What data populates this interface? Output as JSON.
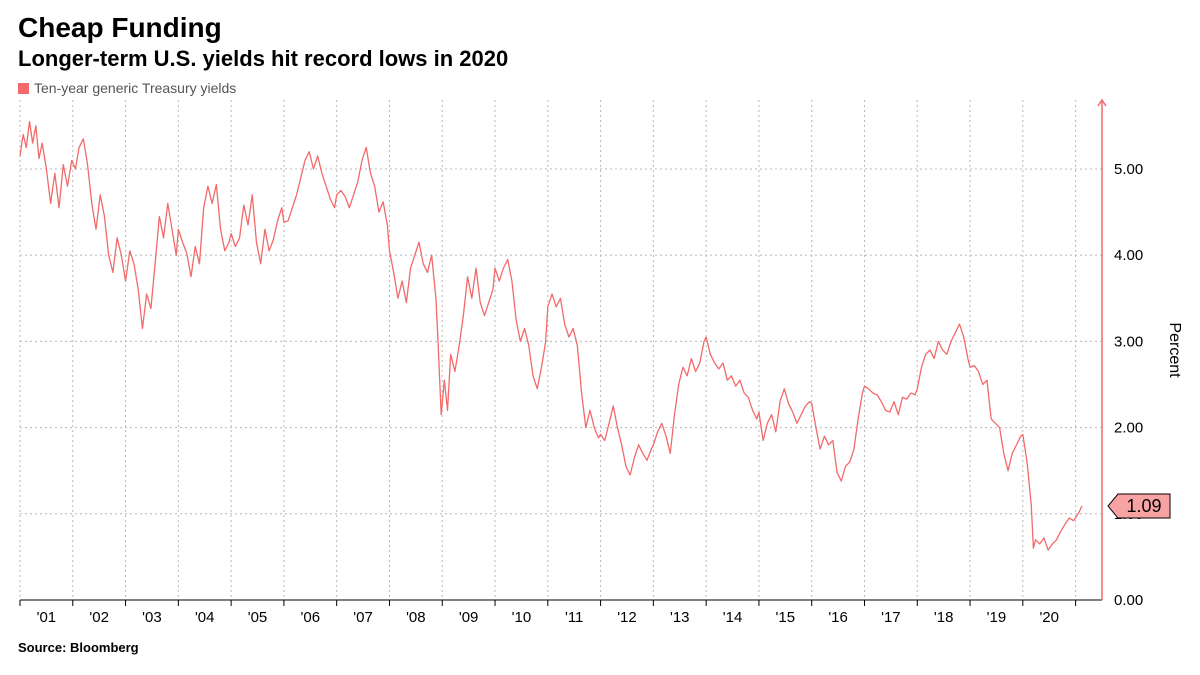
{
  "title": "Cheap Funding",
  "subtitle": "Longer-term U.S. yields hit record lows in 2020",
  "legend": {
    "label": "Ten-year generic Treasury yields",
    "color": "#f26a6a"
  },
  "source": "Source: Bloomberg",
  "chart": {
    "type": "line",
    "line_color": "#f26a6a",
    "line_width": 1.3,
    "background_color": "#ffffff",
    "grid_color": "#b8b8b8",
    "axis_color": "#000000",
    "axis_fontsize": 15,
    "y_axis": {
      "title": "Percent",
      "side": "right",
      "min": 0.0,
      "max": 5.8,
      "ticks": [
        0.0,
        1.0,
        2.0,
        3.0,
        4.0,
        5.0
      ],
      "tick_format": "0.00"
    },
    "x_axis": {
      "ticks": [
        "'01",
        "'02",
        "'03",
        "'04",
        "'05",
        "'06",
        "'07",
        "'08",
        "'09",
        "'10",
        "'11",
        "'12",
        "'13",
        "'14",
        "'15",
        "'16",
        "'17",
        "'18",
        "'19",
        "'20"
      ],
      "tick_positions": [
        0.5,
        1.5,
        2.5,
        3.5,
        4.5,
        5.5,
        6.5,
        7.5,
        8.5,
        9.5,
        10.5,
        11.5,
        12.5,
        13.5,
        14.5,
        15.5,
        16.5,
        17.5,
        18.5,
        19.5
      ],
      "min": 0,
      "max": 20.5
    },
    "callout": {
      "value": 1.09,
      "label": "1.09",
      "fill": "#f7a3a3",
      "stroke": "#000000"
    },
    "series": [
      [
        0.0,
        5.15
      ],
      [
        0.06,
        5.4
      ],
      [
        0.12,
        5.25
      ],
      [
        0.18,
        5.55
      ],
      [
        0.24,
        5.3
      ],
      [
        0.3,
        5.5
      ],
      [
        0.36,
        5.12
      ],
      [
        0.42,
        5.3
      ],
      [
        0.5,
        5.0
      ],
      [
        0.58,
        4.6
      ],
      [
        0.66,
        4.95
      ],
      [
        0.74,
        4.55
      ],
      [
        0.82,
        5.05
      ],
      [
        0.9,
        4.8
      ],
      [
        0.98,
        5.1
      ],
      [
        1.05,
        5.0
      ],
      [
        1.12,
        5.25
      ],
      [
        1.2,
        5.35
      ],
      [
        1.28,
        5.05
      ],
      [
        1.36,
        4.6
      ],
      [
        1.44,
        4.3
      ],
      [
        1.52,
        4.7
      ],
      [
        1.6,
        4.45
      ],
      [
        1.68,
        4.0
      ],
      [
        1.76,
        3.8
      ],
      [
        1.84,
        4.2
      ],
      [
        1.92,
        4.0
      ],
      [
        2.0,
        3.7
      ],
      [
        2.08,
        4.05
      ],
      [
        2.16,
        3.9
      ],
      [
        2.24,
        3.6
      ],
      [
        2.32,
        3.15
      ],
      [
        2.4,
        3.55
      ],
      [
        2.48,
        3.38
      ],
      [
        2.56,
        3.9
      ],
      [
        2.64,
        4.45
      ],
      [
        2.72,
        4.2
      ],
      [
        2.8,
        4.6
      ],
      [
        2.88,
        4.3
      ],
      [
        2.96,
        4.0
      ],
      [
        3.0,
        4.3
      ],
      [
        3.08,
        4.15
      ],
      [
        3.16,
        4.02
      ],
      [
        3.24,
        3.75
      ],
      [
        3.32,
        4.1
      ],
      [
        3.4,
        3.9
      ],
      [
        3.48,
        4.55
      ],
      [
        3.56,
        4.8
      ],
      [
        3.64,
        4.6
      ],
      [
        3.72,
        4.82
      ],
      [
        3.8,
        4.3
      ],
      [
        3.88,
        4.05
      ],
      [
        3.96,
        4.15
      ],
      [
        4.0,
        4.25
      ],
      [
        4.08,
        4.1
      ],
      [
        4.16,
        4.2
      ],
      [
        4.24,
        4.58
      ],
      [
        4.32,
        4.35
      ],
      [
        4.4,
        4.7
      ],
      [
        4.48,
        4.15
      ],
      [
        4.56,
        3.9
      ],
      [
        4.64,
        4.3
      ],
      [
        4.72,
        4.05
      ],
      [
        4.8,
        4.18
      ],
      [
        4.88,
        4.4
      ],
      [
        4.96,
        4.55
      ],
      [
        5.0,
        4.38
      ],
      [
        5.08,
        4.4
      ],
      [
        5.16,
        4.55
      ],
      [
        5.24,
        4.7
      ],
      [
        5.32,
        4.9
      ],
      [
        5.4,
        5.1
      ],
      [
        5.48,
        5.2
      ],
      [
        5.56,
        5.0
      ],
      [
        5.64,
        5.15
      ],
      [
        5.72,
        4.95
      ],
      [
        5.8,
        4.8
      ],
      [
        5.88,
        4.65
      ],
      [
        5.96,
        4.55
      ],
      [
        6.0,
        4.7
      ],
      [
        6.08,
        4.75
      ],
      [
        6.16,
        4.68
      ],
      [
        6.24,
        4.55
      ],
      [
        6.32,
        4.7
      ],
      [
        6.4,
        4.85
      ],
      [
        6.48,
        5.1
      ],
      [
        6.56,
        5.25
      ],
      [
        6.64,
        4.95
      ],
      [
        6.72,
        4.8
      ],
      [
        6.8,
        4.5
      ],
      [
        6.88,
        4.62
      ],
      [
        6.96,
        4.35
      ],
      [
        7.0,
        4.05
      ],
      [
        7.08,
        3.8
      ],
      [
        7.16,
        3.5
      ],
      [
        7.24,
        3.7
      ],
      [
        7.32,
        3.45
      ],
      [
        7.4,
        3.85
      ],
      [
        7.48,
        4.0
      ],
      [
        7.56,
        4.15
      ],
      [
        7.64,
        3.9
      ],
      [
        7.72,
        3.8
      ],
      [
        7.8,
        4.0
      ],
      [
        7.88,
        3.5
      ],
      [
        7.92,
        3.0
      ],
      [
        7.98,
        2.15
      ],
      [
        8.04,
        2.55
      ],
      [
        8.1,
        2.2
      ],
      [
        8.16,
        2.85
      ],
      [
        8.24,
        2.65
      ],
      [
        8.32,
        2.95
      ],
      [
        8.4,
        3.3
      ],
      [
        8.48,
        3.75
      ],
      [
        8.56,
        3.5
      ],
      [
        8.64,
        3.85
      ],
      [
        8.72,
        3.45
      ],
      [
        8.8,
        3.3
      ],
      [
        8.88,
        3.45
      ],
      [
        8.96,
        3.6
      ],
      [
        9.0,
        3.85
      ],
      [
        9.08,
        3.7
      ],
      [
        9.16,
        3.85
      ],
      [
        9.24,
        3.95
      ],
      [
        9.32,
        3.7
      ],
      [
        9.4,
        3.25
      ],
      [
        9.48,
        3.0
      ],
      [
        9.56,
        3.15
      ],
      [
        9.64,
        2.95
      ],
      [
        9.72,
        2.6
      ],
      [
        9.8,
        2.45
      ],
      [
        9.88,
        2.7
      ],
      [
        9.96,
        3.0
      ],
      [
        10.0,
        3.4
      ],
      [
        10.08,
        3.55
      ],
      [
        10.16,
        3.4
      ],
      [
        10.24,
        3.5
      ],
      [
        10.32,
        3.2
      ],
      [
        10.4,
        3.05
      ],
      [
        10.48,
        3.15
      ],
      [
        10.56,
        2.95
      ],
      [
        10.64,
        2.4
      ],
      [
        10.72,
        2.0
      ],
      [
        10.8,
        2.2
      ],
      [
        10.88,
        2.0
      ],
      [
        10.96,
        1.88
      ],
      [
        11.0,
        1.92
      ],
      [
        11.08,
        1.85
      ],
      [
        11.16,
        2.05
      ],
      [
        11.24,
        2.25
      ],
      [
        11.32,
        2.0
      ],
      [
        11.4,
        1.8
      ],
      [
        11.48,
        1.55
      ],
      [
        11.56,
        1.45
      ],
      [
        11.64,
        1.65
      ],
      [
        11.72,
        1.8
      ],
      [
        11.8,
        1.7
      ],
      [
        11.88,
        1.62
      ],
      [
        11.96,
        1.75
      ],
      [
        12.0,
        1.8
      ],
      [
        12.08,
        1.95
      ],
      [
        12.16,
        2.05
      ],
      [
        12.24,
        1.9
      ],
      [
        12.32,
        1.7
      ],
      [
        12.4,
        2.15
      ],
      [
        12.48,
        2.5
      ],
      [
        12.56,
        2.7
      ],
      [
        12.64,
        2.6
      ],
      [
        12.72,
        2.8
      ],
      [
        12.8,
        2.65
      ],
      [
        12.88,
        2.75
      ],
      [
        12.96,
        3.0
      ],
      [
        13.0,
        3.05
      ],
      [
        13.08,
        2.85
      ],
      [
        13.16,
        2.75
      ],
      [
        13.24,
        2.68
      ],
      [
        13.32,
        2.75
      ],
      [
        13.4,
        2.55
      ],
      [
        13.48,
        2.6
      ],
      [
        13.56,
        2.48
      ],
      [
        13.64,
        2.55
      ],
      [
        13.72,
        2.4
      ],
      [
        13.8,
        2.35
      ],
      [
        13.88,
        2.2
      ],
      [
        13.96,
        2.1
      ],
      [
        14.0,
        2.18
      ],
      [
        14.08,
        1.85
      ],
      [
        14.16,
        2.05
      ],
      [
        14.24,
        2.15
      ],
      [
        14.32,
        1.95
      ],
      [
        14.4,
        2.3
      ],
      [
        14.48,
        2.45
      ],
      [
        14.56,
        2.28
      ],
      [
        14.64,
        2.18
      ],
      [
        14.72,
        2.05
      ],
      [
        14.8,
        2.15
      ],
      [
        14.88,
        2.25
      ],
      [
        14.96,
        2.3
      ],
      [
        15.0,
        2.28
      ],
      [
        15.08,
        2.0
      ],
      [
        15.16,
        1.75
      ],
      [
        15.24,
        1.9
      ],
      [
        15.32,
        1.8
      ],
      [
        15.4,
        1.85
      ],
      [
        15.48,
        1.48
      ],
      [
        15.56,
        1.38
      ],
      [
        15.64,
        1.55
      ],
      [
        15.72,
        1.6
      ],
      [
        15.8,
        1.75
      ],
      [
        15.88,
        2.1
      ],
      [
        15.96,
        2.4
      ],
      [
        16.0,
        2.48
      ],
      [
        16.08,
        2.45
      ],
      [
        16.16,
        2.4
      ],
      [
        16.24,
        2.38
      ],
      [
        16.32,
        2.3
      ],
      [
        16.4,
        2.2
      ],
      [
        16.48,
        2.18
      ],
      [
        16.56,
        2.3
      ],
      [
        16.64,
        2.15
      ],
      [
        16.72,
        2.35
      ],
      [
        16.8,
        2.33
      ],
      [
        16.88,
        2.4
      ],
      [
        16.96,
        2.38
      ],
      [
        17.0,
        2.45
      ],
      [
        17.08,
        2.7
      ],
      [
        17.16,
        2.85
      ],
      [
        17.24,
        2.9
      ],
      [
        17.32,
        2.8
      ],
      [
        17.4,
        3.0
      ],
      [
        17.48,
        2.9
      ],
      [
        17.56,
        2.85
      ],
      [
        17.64,
        3.0
      ],
      [
        17.72,
        3.1
      ],
      [
        17.8,
        3.2
      ],
      [
        17.88,
        3.05
      ],
      [
        17.96,
        2.8
      ],
      [
        18.0,
        2.7
      ],
      [
        18.08,
        2.72
      ],
      [
        18.16,
        2.65
      ],
      [
        18.24,
        2.5
      ],
      [
        18.32,
        2.55
      ],
      [
        18.4,
        2.1
      ],
      [
        18.48,
        2.05
      ],
      [
        18.56,
        2.0
      ],
      [
        18.64,
        1.7
      ],
      [
        18.72,
        1.5
      ],
      [
        18.8,
        1.7
      ],
      [
        18.88,
        1.8
      ],
      [
        18.96,
        1.9
      ],
      [
        19.0,
        1.92
      ],
      [
        19.08,
        1.6
      ],
      [
        19.16,
        1.1
      ],
      [
        19.2,
        0.6
      ],
      [
        19.24,
        0.7
      ],
      [
        19.32,
        0.65
      ],
      [
        19.4,
        0.72
      ],
      [
        19.48,
        0.58
      ],
      [
        19.56,
        0.65
      ],
      [
        19.64,
        0.7
      ],
      [
        19.72,
        0.8
      ],
      [
        19.8,
        0.88
      ],
      [
        19.88,
        0.95
      ],
      [
        19.96,
        0.92
      ],
      [
        20.05,
        1.0
      ],
      [
        20.12,
        1.09
      ]
    ]
  }
}
